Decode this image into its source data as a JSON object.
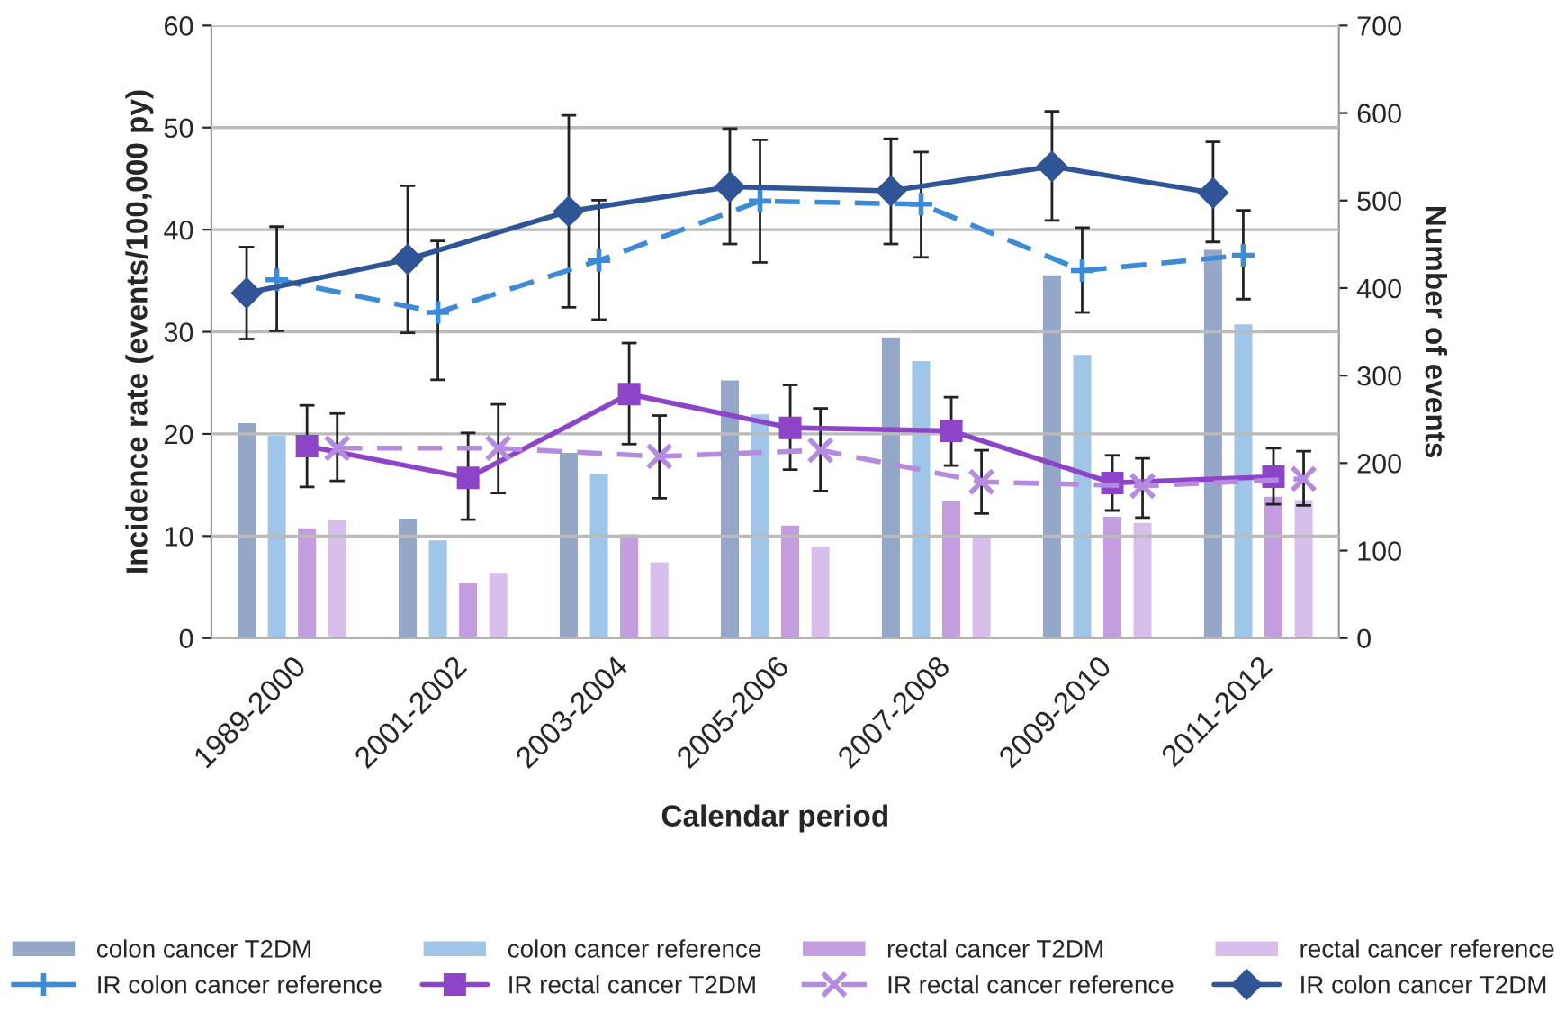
{
  "chart_data": {
    "type": "bar",
    "xlabel": "Calendar period",
    "ylabel": "Incidence rate (events/100,000 py)",
    "y2label": "Number of events",
    "categories": [
      "1989-2000",
      "2001-2002",
      "2003-2004",
      "2005-2006",
      "2007-2008",
      "2009-2010",
      "2011-2012"
    ],
    "ylim": [
      0,
      60
    ],
    "yticks": [
      0,
      10,
      20,
      30,
      40,
      50,
      60
    ],
    "y2lim": [
      0,
      700
    ],
    "y2ticks": [
      0,
      100,
      200,
      300,
      400,
      500,
      600,
      700
    ],
    "grid": "y",
    "legend": "bottom",
    "series": [
      {
        "name": "colon cancer T2DM",
        "axis": "y2",
        "color": "#95a7c8",
        "values": [
          247,
          138,
          213,
          296,
          345,
          416,
          445
        ]
      },
      {
        "name": "colon cancer reference",
        "axis": "y2",
        "color": "#9fc5e8",
        "values": [
          233,
          113,
          189,
          257,
          318,
          325,
          360
        ]
      },
      {
        "name": "rectal cancer T2DM",
        "axis": "y2",
        "color": "#c39ddf",
        "values": [
          127,
          64,
          120,
          130,
          158,
          140,
          163
        ]
      },
      {
        "name": "rectal cancer reference",
        "axis": "y2",
        "color": "#d8bfeb",
        "values": [
          137,
          76,
          88,
          106,
          116,
          133,
          159
        ]
      },
      {
        "name": "IR colon cancer reference",
        "type": "line",
        "color": "#3d8ad6",
        "marker": "plus",
        "line_style": "dashed",
        "values": [
          35.1,
          31.9,
          37.0,
          42.8,
          42.5,
          36.0,
          37.5
        ],
        "errors": [
          [
            30.1,
            40.3
          ],
          [
            25.3,
            38.9
          ],
          [
            31.2,
            42.9
          ],
          [
            36.8,
            48.8
          ],
          [
            37.3,
            47.6
          ],
          [
            31.9,
            40.2
          ],
          [
            33.2,
            41.9
          ]
        ]
      },
      {
        "name": "IR rectal cancer T2DM",
        "type": "line",
        "color": "#8e44c8",
        "marker": "square",
        "line_style": "solid",
        "values": [
          18.8,
          15.7,
          23.9,
          20.6,
          20.3,
          15.2,
          15.8
        ],
        "errors": [
          [
            14.8,
            22.8
          ],
          [
            11.6,
            20.1
          ],
          [
            19.0,
            28.9
          ],
          [
            16.5,
            24.8
          ],
          [
            16.9,
            23.6
          ],
          [
            12.5,
            17.9
          ],
          [
            13.1,
            18.6
          ]
        ]
      },
      {
        "name": "IR rectal cancer reference",
        "type": "line",
        "color": "#b58be0",
        "marker": "cross",
        "line_style": "dashed",
        "values": [
          18.6,
          18.6,
          17.8,
          18.4,
          15.3,
          14.9,
          15.6
        ],
        "errors": [
          [
            15.4,
            22.0
          ],
          [
            14.2,
            22.9
          ],
          [
            13.7,
            21.8
          ],
          [
            14.4,
            22.5
          ],
          [
            12.2,
            18.4
          ],
          [
            11.8,
            17.6
          ],
          [
            13.0,
            18.3
          ]
        ]
      },
      {
        "name": "IR colon cancer T2DM",
        "type": "line",
        "color": "#2f5597",
        "marker": "diamond",
        "line_style": "solid",
        "values": [
          33.8,
          37.1,
          41.8,
          44.2,
          43.8,
          46.2,
          43.6
        ],
        "errors": [
          [
            29.3,
            38.3
          ],
          [
            29.9,
            44.3
          ],
          [
            32.4,
            51.2
          ],
          [
            38.6,
            49.9
          ],
          [
            38.6,
            48.9
          ],
          [
            40.9,
            51.6
          ],
          [
            38.8,
            48.6
          ]
        ]
      }
    ]
  }
}
